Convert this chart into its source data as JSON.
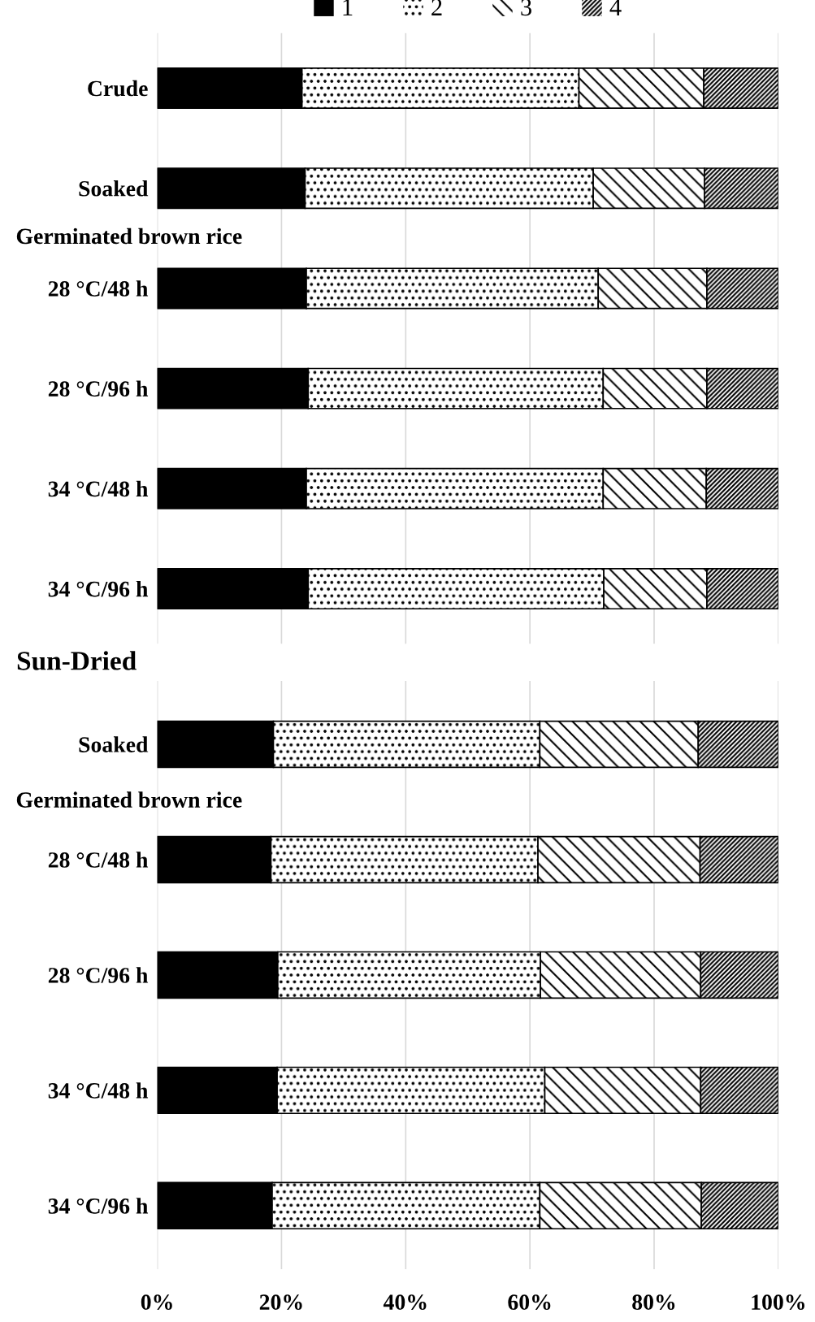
{
  "chart_data": [
    {
      "type": "bar",
      "orientation": "horizontal",
      "stacked": true,
      "legend": "top",
      "grid": "x",
      "tick_labels": "y",
      "categories": [
        "Crude",
        "Soaked",
        "28 °C/48 h",
        "28 °C/96 h",
        "34 °C/48 h",
        "34 °C/96 h"
      ],
      "xlim": [
        0,
        100
      ],
      "xticks": [
        {
          "value": 0,
          "label": null
        },
        {
          "value": 20,
          "label": null
        },
        {
          "value": 40,
          "label": null
        },
        {
          "value": 60,
          "label": null
        },
        {
          "value": 80,
          "label": null
        },
        {
          "value": 100,
          "label": null
        }
      ],
      "annotations": [
        "Germinated brown rice"
      ],
      "series": [
        {
          "name": "1",
          "color": "#000000",
          "values": [
            23.3,
            23.8,
            24.0,
            24.3,
            24.0,
            24.3
          ]
        },
        {
          "name": "2",
          "color": "#ffffff",
          "values": [
            44.6,
            46.4,
            47.0,
            47.5,
            47.8,
            47.6
          ]
        },
        {
          "name": "3",
          "color": "#ffffff",
          "values": [
            20.1,
            17.9,
            17.5,
            16.7,
            16.6,
            16.6
          ]
        },
        {
          "name": "4",
          "color": "#ffffff",
          "values": [
            12.0,
            11.9,
            11.5,
            11.5,
            11.6,
            11.5
          ]
        }
      ]
    },
    {
      "type": "bar",
      "orientation": "horizontal",
      "stacked": true,
      "grid": "x",
      "title": "Sun-Dried",
      "categories": [
        "Soaked",
        "28 °C/48 h",
        "28 °C/96 h",
        "34 °C/48 h",
        "34 °C/96 h"
      ],
      "xlim": [
        0,
        100
      ],
      "xticks": [
        {
          "value": 0,
          "label": "0%"
        },
        {
          "value": 20,
          "label": "20%"
        },
        {
          "value": 40,
          "label": "40%"
        },
        {
          "value": 60,
          "label": "60%"
        },
        {
          "value": 80,
          "label": "80%"
        },
        {
          "value": 100,
          "label": "100%"
        }
      ],
      "annotations": [
        "Germinated brown rice"
      ],
      "series": [
        {
          "color": "#000000",
          "values": [
            18.7,
            18.3,
            19.4,
            19.3,
            18.5
          ]
        },
        {
          "color": "#ffffff",
          "values": [
            42.9,
            43.0,
            42.3,
            43.1,
            43.1
          ]
        },
        {
          "color": "#ffffff",
          "values": [
            25.5,
            26.1,
            25.8,
            25.1,
            26.0
          ]
        },
        {
          "color": "#ffffff",
          "values": [
            12.9,
            12.6,
            12.5,
            12.5,
            12.4
          ]
        }
      ]
    }
  ]
}
